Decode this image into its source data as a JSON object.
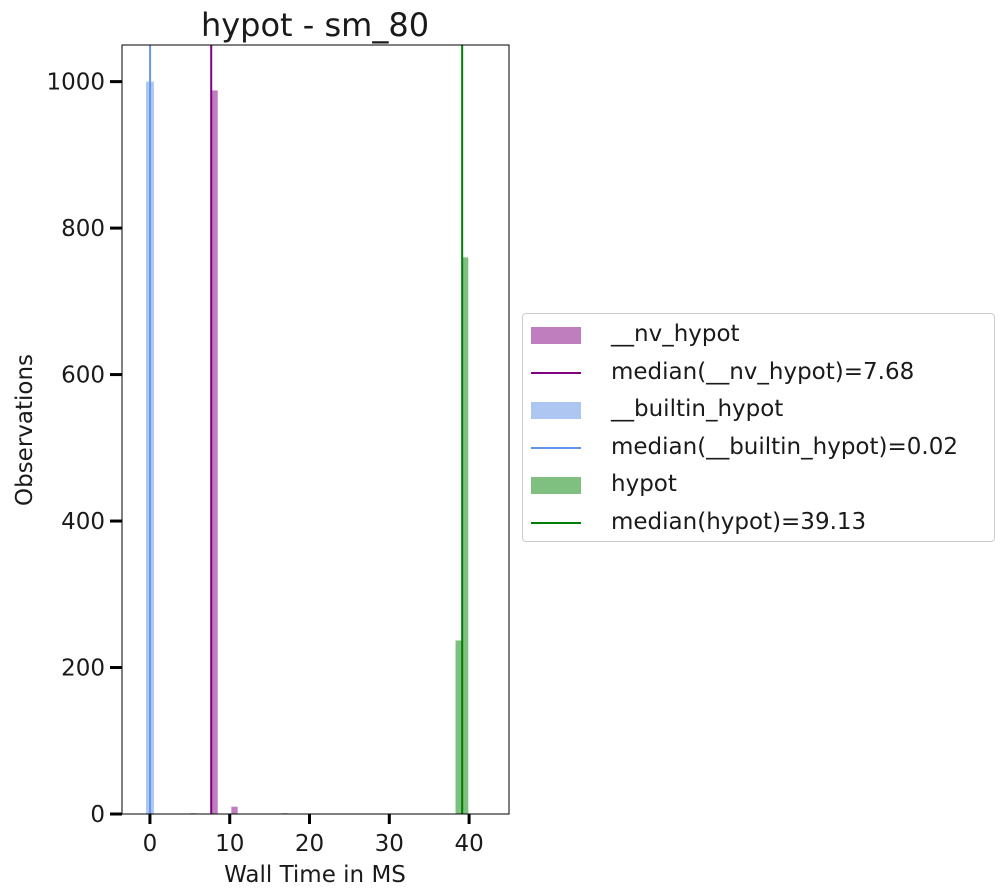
{
  "chart_data": {
    "type": "bar",
    "title": "hypot - sm_80",
    "xlabel": "Wall Time in MS",
    "ylabel": "Observations",
    "xlim": [
      -3.5,
      45
    ],
    "ylim": [
      0,
      1050
    ],
    "xticks": [
      0,
      10,
      20,
      30,
      40
    ],
    "yticks": [
      0,
      200,
      400,
      600,
      800,
      1000
    ],
    "grid": false,
    "legend_position": "center-left outside plot (right)",
    "series": [
      {
        "name": "__nv_hypot",
        "kind": "histogram",
        "color": "#bf7fbf",
        "bins": [
          {
            "x0": 5.0,
            "x1": 5.8,
            "count": 1
          },
          {
            "x0": 7.7,
            "x1": 8.5,
            "count": 988
          },
          {
            "x0": 10.2,
            "x1": 11.0,
            "count": 10
          },
          {
            "x0": 16.5,
            "x1": 17.3,
            "count": 1
          }
        ]
      },
      {
        "name": "median(__nv_hypot)=7.68",
        "kind": "vline",
        "x": 7.68,
        "color": "#800080"
      },
      {
        "name": "__builtin_hypot",
        "kind": "histogram",
        "color": "#aec7f2",
        "bins": [
          {
            "x0": -0.5,
            "x1": 0.5,
            "count": 1000
          }
        ]
      },
      {
        "name": "median(__builtin_hypot)=0.02",
        "kind": "vline",
        "x": 0.02,
        "color": "#6495ed"
      },
      {
        "name": "hypot",
        "kind": "histogram",
        "color": "#7fbf7f",
        "bins": [
          {
            "x0": 38.3,
            "x1": 39.1,
            "count": 237
          },
          {
            "x0": 39.1,
            "x1": 39.9,
            "count": 760
          }
        ]
      },
      {
        "name": "median(hypot)=39.13",
        "kind": "vline",
        "x": 39.13,
        "color": "#008000"
      }
    ]
  }
}
